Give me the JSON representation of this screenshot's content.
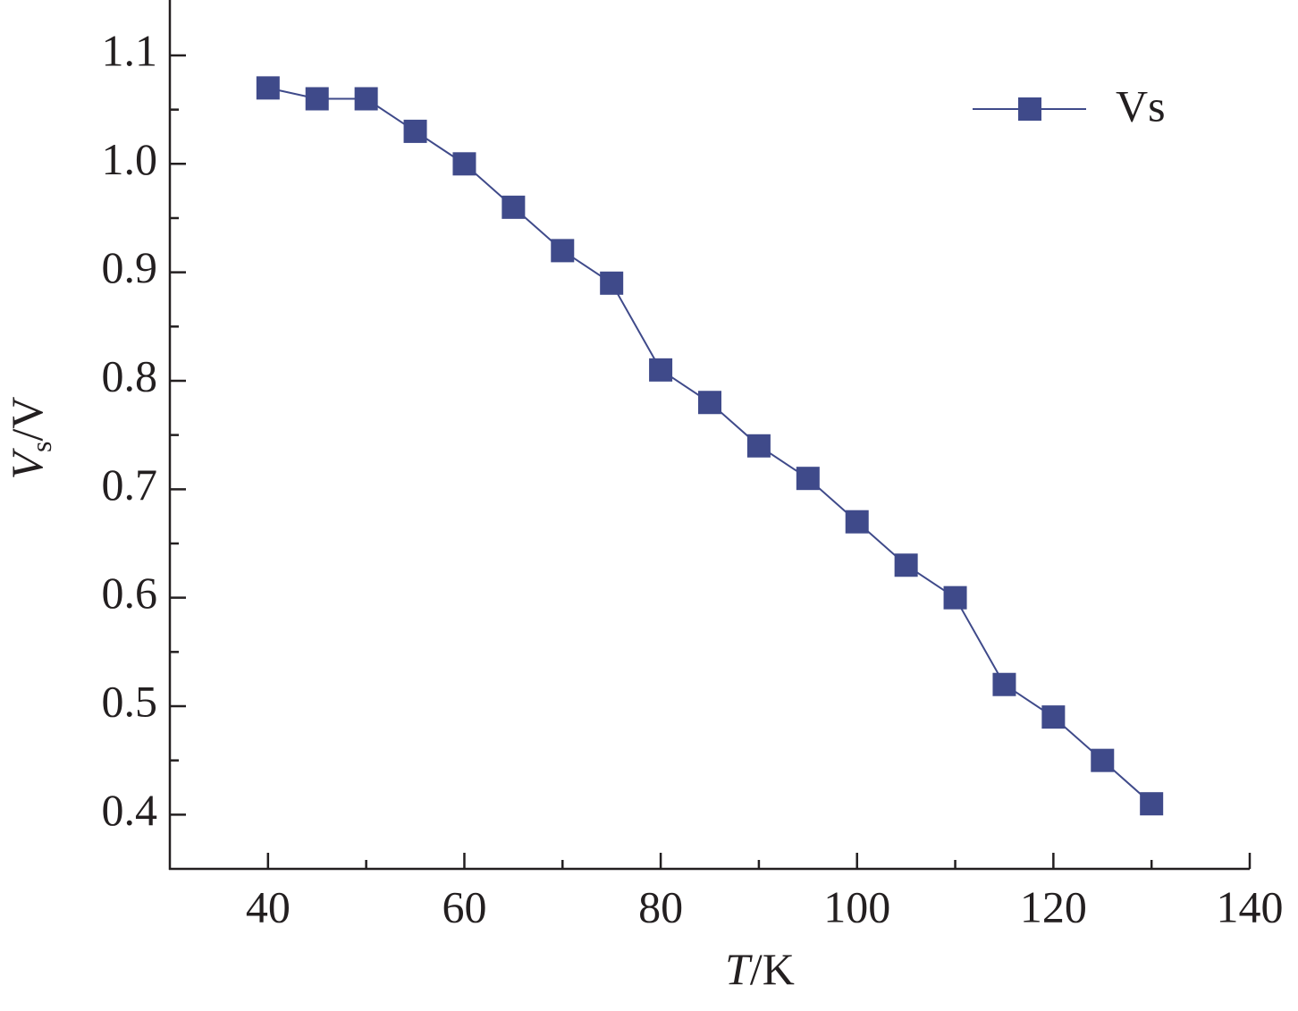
{
  "chart_data": {
    "type": "line",
    "x_label": [
      "T",
      "/K"
    ],
    "y_label": [
      "V",
      "s",
      "/V"
    ],
    "x": [
      40,
      45,
      50,
      55,
      60,
      65,
      70,
      75,
      80,
      85,
      90,
      95,
      100,
      105,
      110,
      115,
      120,
      125,
      130
    ],
    "series": [
      {
        "name": "Vs",
        "color": "#3f4a8a",
        "values": [
          1.07,
          1.06,
          1.06,
          1.03,
          1.0,
          0.96,
          0.92,
          0.89,
          0.81,
          0.78,
          0.74,
          0.71,
          0.67,
          0.63,
          0.6,
          0.52,
          0.49,
          0.45,
          0.41
        ]
      }
    ],
    "xlim": [
      30,
      140
    ],
    "ylim": [
      0.35,
      1.15
    ],
    "xticks": [
      40,
      60,
      80,
      100,
      120,
      140
    ],
    "yticks": [
      0.4,
      0.5,
      0.6,
      0.7,
      0.8,
      0.9,
      {
        "value": 1,
        "label": "1.0"
      },
      1.1
    ],
    "grid": false,
    "legend": "upper right"
  }
}
